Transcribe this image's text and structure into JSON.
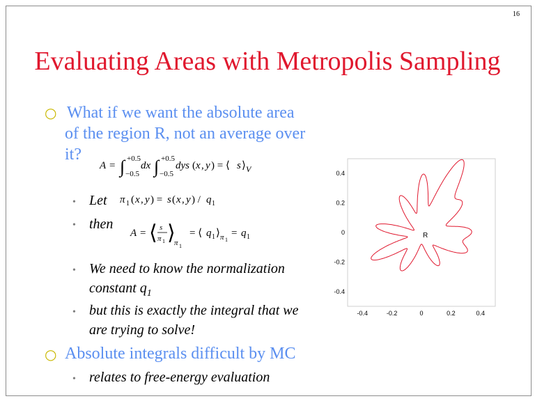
{
  "page_number": "16",
  "title": "Evaluating Areas with Metropolis Sampling",
  "point1": {
    "lines": [
      "What if we want the absolute area",
      "of the region R, not an average over",
      "it?"
    ],
    "eq_main": "A = ∫₋₀.₅⁺⁰·⁵dx∫₋₀.₅⁺⁰·⁵dy s(x, y) = ⟨s⟩V"
  },
  "sub1": {
    "label": "Let",
    "eq": "π1(x, y) = s(x, y) / q1"
  },
  "sub2": {
    "label": "then",
    "eq": "A = ⟨s/π1⟩π1 = ⟨q1⟩π1 = q1"
  },
  "sub3": {
    "lines": [
      "We need to know the normalization",
      "constant q"
    ],
    "subscript": "1"
  },
  "sub4": {
    "lines": [
      "but this is exactly the integral that we",
      "are trying to solve!"
    ]
  },
  "point2": {
    "text": "Absolute integrals difficult by MC"
  },
  "sub5": {
    "text": "relates to free-energy evaluation"
  },
  "chart_data": {
    "type": "line",
    "title": "",
    "xlabel": "",
    "ylabel": "",
    "xlim": [
      -0.5,
      0.5
    ],
    "ylim": [
      -0.5,
      0.5
    ],
    "x_ticks": [
      "-0.4",
      "-0.2",
      "0",
      "0.2",
      "0.4"
    ],
    "y_ticks": [
      "0.4",
      "0.2",
      "0",
      "-0.2",
      "-0.4"
    ],
    "annotation": "R",
    "curve_color": "#e0182e",
    "grid": false
  }
}
